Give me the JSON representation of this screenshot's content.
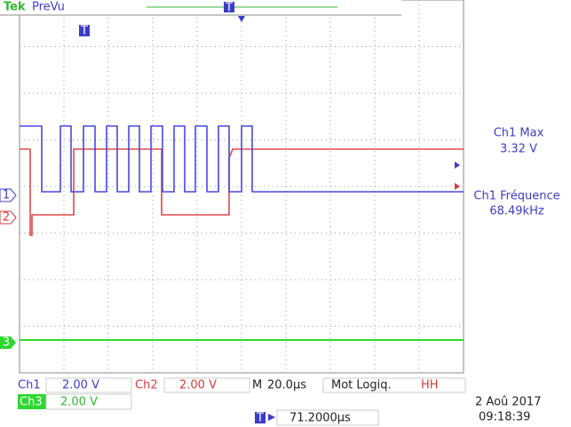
{
  "header": {
    "brand": "Tek",
    "mode": "PreVu"
  },
  "trigger_marker": "T",
  "channel_markers": [
    "1",
    "2",
    "3"
  ],
  "measurements": [
    {
      "label": "Ch1 Max",
      "value": "3.32 V"
    },
    {
      "label": "Ch1 Fréquence",
      "value": "68.49kHz"
    }
  ],
  "status": {
    "ch1": {
      "label": "Ch1",
      "scale": "2.00 V"
    },
    "ch2": {
      "label": "Ch2",
      "scale": "2.00 V"
    },
    "ch3": {
      "label": "Ch3",
      "scale": "2.00 V"
    },
    "timebase_prefix": "M",
    "timebase": "20.0µs",
    "trigger_type": "Mot Logiq.",
    "trigger_flags": "HH",
    "trigger_position": "71.2000µs",
    "date": "2 Aoû 2017",
    "time": "09:18:39"
  }
}
